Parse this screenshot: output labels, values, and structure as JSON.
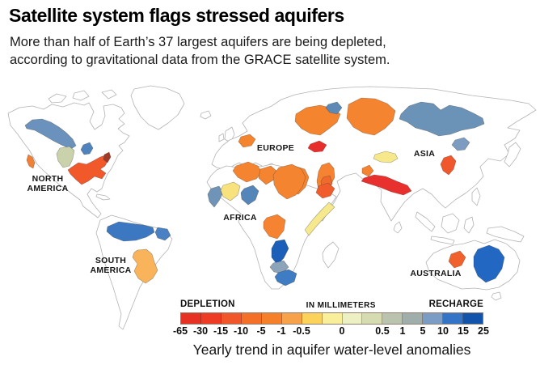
{
  "header": {
    "title": "Satellite system flags stressed aquifers",
    "subtitle": "More than half of Earth’s 37 largest aquifers are being depleted, according to gravitational data from the GRACE satellite system."
  },
  "map": {
    "land_outline_color": "#b3b3b3",
    "labels": {
      "north_america": {
        "line1": "NORTH",
        "line2": "AMERICA"
      },
      "south_america": {
        "line1": "SOUTH",
        "line2": "AMERICA"
      },
      "europe": "EUROPE",
      "africa": "AFRICA",
      "asia": "ASIA",
      "australia": "AUSTRALIA"
    },
    "aquifers": {
      "na_northwest": "#6a92bc",
      "na_hudson": "#4f83bd",
      "na_central_plains": "#c9d2ab",
      "na_california": "#f08036",
      "na_gulf_coast": "#f1582a",
      "na_atlantic": "#a33a28",
      "sa_amazon_west": "#3c78c2",
      "sa_amazon_east": "#4a81c4",
      "sa_guarani": "#f9b35a",
      "eu_paris": "#f5842f",
      "ru_platform": "#f5842f",
      "ru_pechora": "#5d89b6",
      "ru_west_siberia": "#f58430",
      "ru_east_siberia": "#6b93b8",
      "caucasus": "#e72e2c",
      "tarim": "#f7e88c",
      "songliao": "#7d9cc2",
      "north_china": "#f1572c",
      "arabia": "#f58430",
      "somalia_coast": "#f6e88c",
      "indus": "#f58331",
      "indus_inner": "#ee6a2d",
      "upper_ganges_west": "#f58331",
      "ganges": "#e8312e",
      "af_senegal": "#6f94b8",
      "af_mali": "#f8e27e",
      "af_chad": "#5586ba",
      "af_nw_sahara": "#f58430",
      "af_murzuk": "#f58430",
      "af_nubian": "#f58430",
      "af_horn": "#f05c2c",
      "af_congo": "#f58331",
      "af_okavango": "#1c5fb8",
      "af_karoo": "#8ba4ba",
      "af_south_africa": "#3e7cc4",
      "au_canning": "#f0612b",
      "au_great_artesian": "#2268c2"
    }
  },
  "legend": {
    "depletion_label": "DEPLETION",
    "units_label": "IN MILLIMETERS",
    "recharge_label": "RECHARGE",
    "caption": "Yearly trend in aquifer water-level anomalies",
    "bar_colors": [
      "#e73122",
      "#ee3b24",
      "#f1562a",
      "#f47029",
      "#f68029",
      "#f8a14b",
      "#fbd25a",
      "#f9ee99",
      "#edf0c2",
      "#d6dcb2",
      "#b9c3ad",
      "#9fadab",
      "#7b9cc4",
      "#3374c6",
      "#1254ac"
    ],
    "ticks": [
      {
        "label": "-65",
        "b": 0
      },
      {
        "label": "-30",
        "b": 1
      },
      {
        "label": "-15",
        "b": 2
      },
      {
        "label": "-10",
        "b": 3
      },
      {
        "label": "-5",
        "b": 4
      },
      {
        "label": "-1",
        "b": 5
      },
      {
        "label": "-0.5",
        "b": 6
      },
      {
        "label": "0",
        "b": 8
      },
      {
        "label": "0.5",
        "b": 10
      },
      {
        "label": "1",
        "b": 11
      },
      {
        "label": "5",
        "b": 12
      },
      {
        "label": "10",
        "b": 13
      },
      {
        "label": "15",
        "b": 14
      },
      {
        "label": "25",
        "b": 15
      }
    ]
  }
}
